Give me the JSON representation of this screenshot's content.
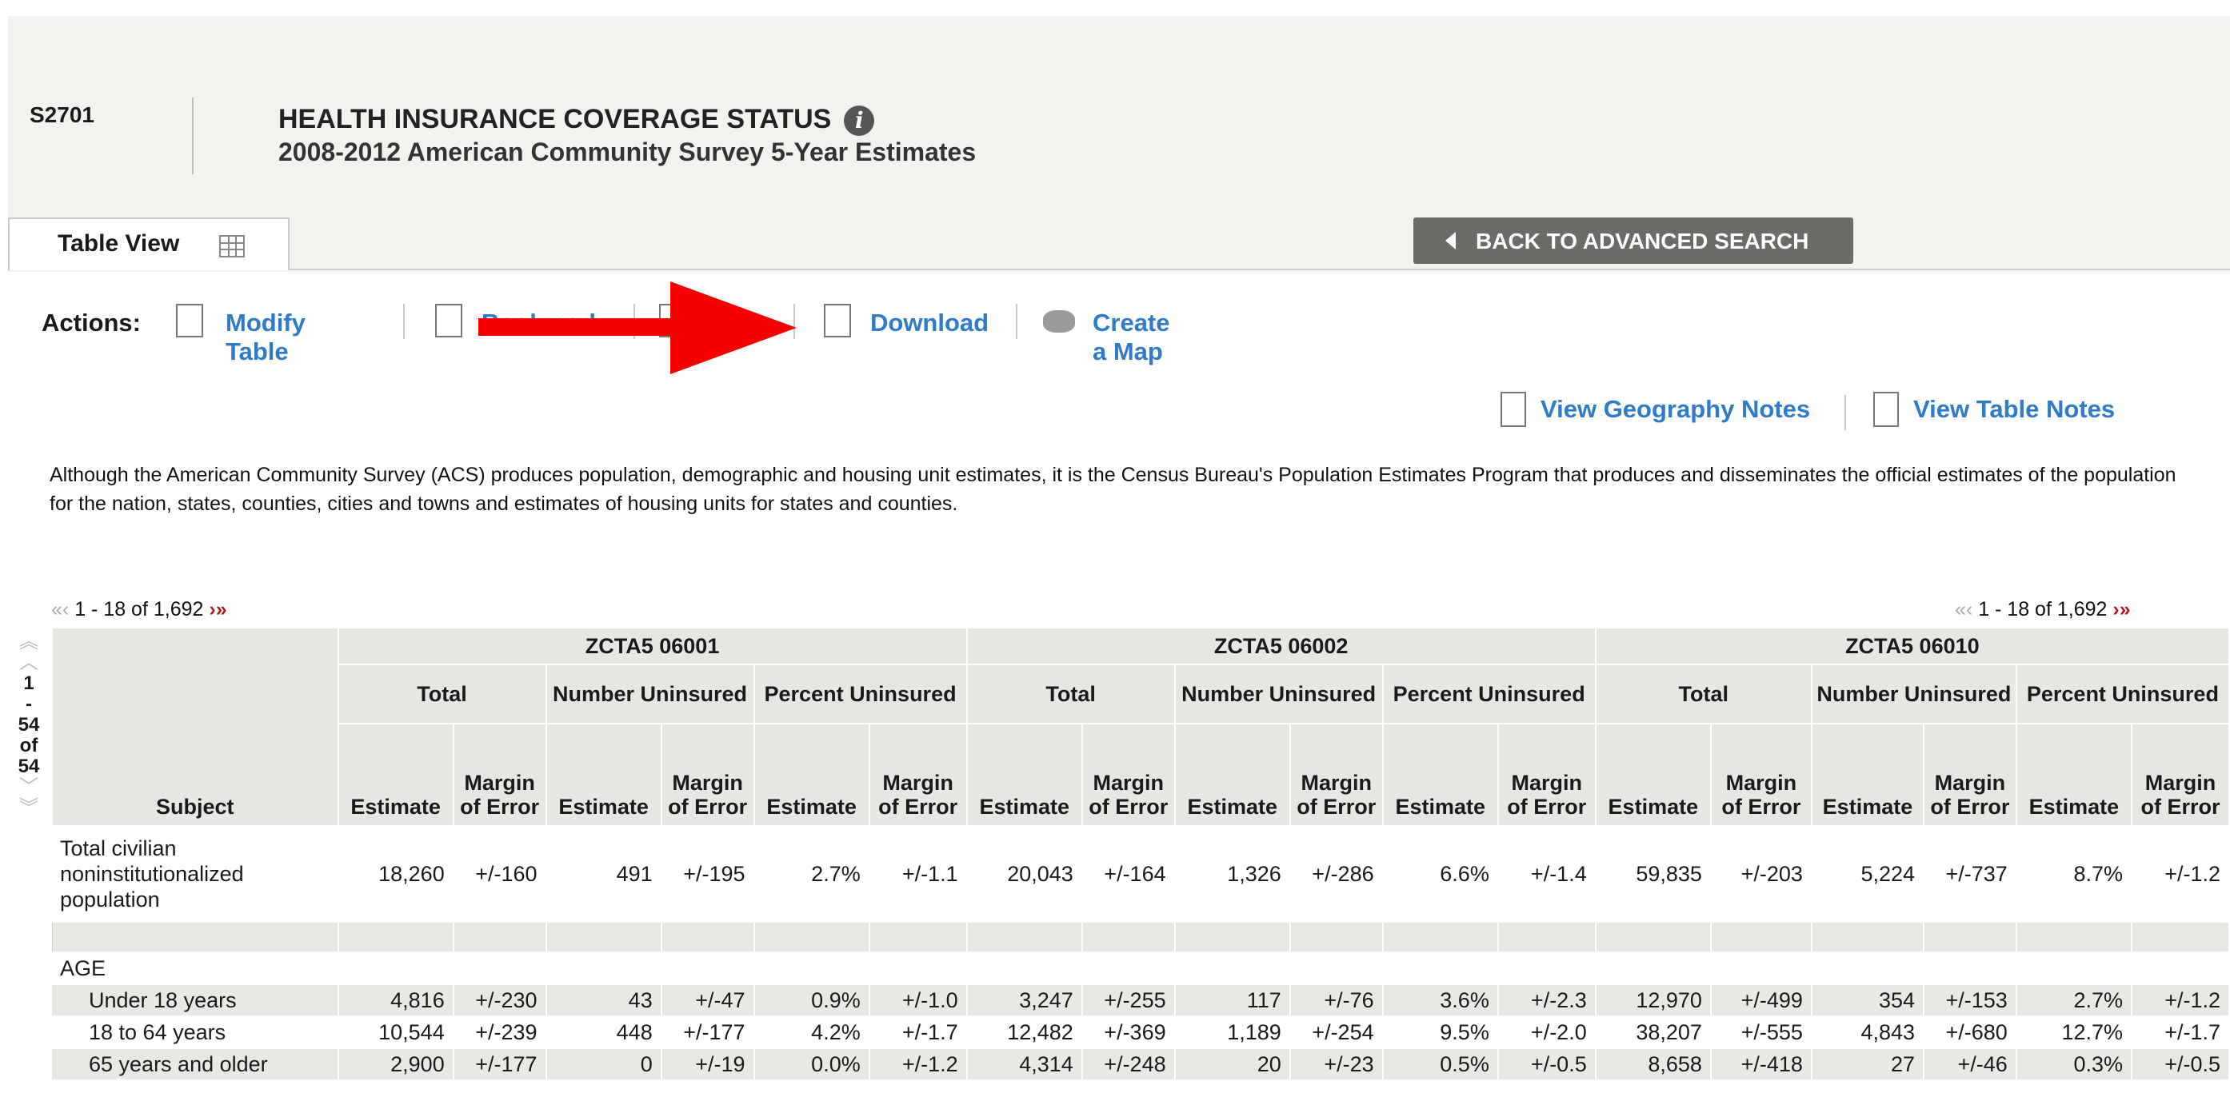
{
  "header": {
    "table_id": "S2701",
    "title": "HEALTH INSURANCE COVERAGE STATUS",
    "info_icon": "i",
    "subtitle": "2008-2012 American Community Survey 5-Year Estimates",
    "tab_label": "Table View",
    "back_button": "BACK TO ADVANCED SEARCH"
  },
  "actions": {
    "label": "Actions:",
    "items": [
      "Modify Table",
      "Bookmark",
      "Print",
      "Download",
      "Create a Map"
    ]
  },
  "notes": {
    "geography": "View Geography Notes",
    "table": "View Table Notes"
  },
  "disclaimer": "Although the American Community Survey (ACS) produces population, demographic and housing unit estimates, it is the Census Bureau's Population Estimates Program that produces and disseminates the official estimates of the population for the nation, states, counties, cities and towns and estimates of housing units for states and counties.",
  "pager": {
    "range": "1 - 18 of 1,692",
    "vertical": [
      "1",
      "-",
      "54",
      "of",
      "54"
    ]
  },
  "table": {
    "subject_header": "Subject",
    "zips": [
      "ZCTA5 06001",
      "ZCTA5 06002",
      "ZCTA5 06010"
    ],
    "groups": [
      "Total",
      "Number Uninsured",
      "Percent Uninsured"
    ],
    "est": "Estimate",
    "moe": "Margin of Error",
    "rows": [
      {
        "label": "Total civilian noninstitutionalized population",
        "vals": [
          "18,260",
          "+/-160",
          "491",
          "+/-195",
          "2.7%",
          "+/-1.1",
          "20,043",
          "+/-164",
          "1,326",
          "+/-286",
          "6.6%",
          "+/-1.4",
          "59,835",
          "+/-203",
          "5,224",
          "+/-737",
          "8.7%",
          "+/-1.2"
        ]
      },
      {
        "label": "AGE",
        "vals": []
      },
      {
        "label": "Under 18 years",
        "vals": [
          "4,816",
          "+/-230",
          "43",
          "+/-47",
          "0.9%",
          "+/-1.0",
          "3,247",
          "+/-255",
          "117",
          "+/-76",
          "3.6%",
          "+/-2.3",
          "12,970",
          "+/-499",
          "354",
          "+/-153",
          "2.7%",
          "+/-1.2"
        ]
      },
      {
        "label": "18 to 64 years",
        "vals": [
          "10,544",
          "+/-239",
          "448",
          "+/-177",
          "4.2%",
          "+/-1.7",
          "12,482",
          "+/-369",
          "1,189",
          "+/-254",
          "9.5%",
          "+/-2.0",
          "38,207",
          "+/-555",
          "4,843",
          "+/-680",
          "12.7%",
          "+/-1.7"
        ]
      },
      {
        "label": "65 years and older",
        "vals": [
          "2,900",
          "+/-177",
          "0",
          "+/-19",
          "0.0%",
          "+/-1.2",
          "4,314",
          "+/-248",
          "20",
          "+/-23",
          "0.5%",
          "+/-0.5",
          "8,658",
          "+/-418",
          "27",
          "+/-46",
          "0.3%",
          "+/-0.5"
        ]
      }
    ]
  }
}
